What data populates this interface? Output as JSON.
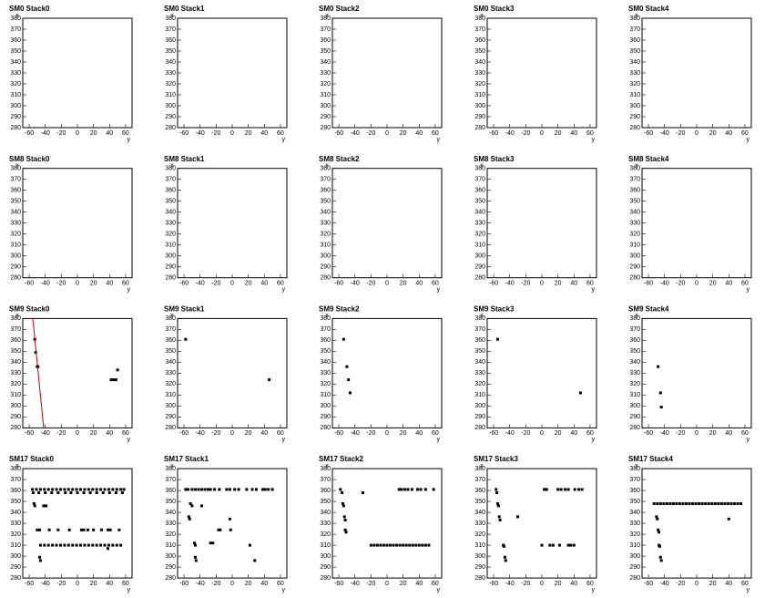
{
  "chart_data": [
    {
      "type": "scatter",
      "title": "SM0 Stack0",
      "xlabel": "y",
      "ylabel": "x",
      "xlim": [
        -68,
        68
      ],
      "ylim": [
        280,
        380
      ],
      "xticks": [
        -60,
        -40,
        -20,
        0,
        20,
        40,
        60
      ],
      "yticks": [
        280,
        290,
        300,
        310,
        320,
        330,
        340,
        350,
        360,
        370,
        380
      ],
      "series": []
    },
    {
      "type": "scatter",
      "title": "SM0 Stack1",
      "xlabel": "y",
      "ylabel": "x",
      "xlim": [
        -68,
        68
      ],
      "ylim": [
        280,
        380
      ],
      "xticks": [
        -60,
        -40,
        -20,
        0,
        20,
        40,
        60
      ],
      "yticks": [
        280,
        290,
        300,
        310,
        320,
        330,
        340,
        350,
        360,
        370,
        380
      ],
      "series": []
    },
    {
      "type": "scatter",
      "title": "SM0 Stack2",
      "xlabel": "y",
      "ylabel": "x",
      "xlim": [
        -68,
        68
      ],
      "ylim": [
        280,
        380
      ],
      "xticks": [
        -60,
        -40,
        -20,
        0,
        20,
        40,
        60
      ],
      "yticks": [
        280,
        290,
        300,
        310,
        320,
        330,
        340,
        350,
        360,
        370,
        380
      ],
      "series": []
    },
    {
      "type": "scatter",
      "title": "SM0 Stack3",
      "xlabel": "y",
      "ylabel": "x",
      "xlim": [
        -68,
        68
      ],
      "ylim": [
        280,
        380
      ],
      "xticks": [
        -60,
        -40,
        -20,
        0,
        20,
        40,
        60
      ],
      "yticks": [
        280,
        290,
        300,
        310,
        320,
        330,
        340,
        350,
        360,
        370,
        380
      ],
      "series": []
    },
    {
      "type": "scatter",
      "title": "SM0 Stack4",
      "xlabel": "y",
      "ylabel": "x",
      "xlim": [
        -68,
        68
      ],
      "ylim": [
        280,
        380
      ],
      "xticks": [
        -60,
        -40,
        -20,
        0,
        20,
        40,
        60
      ],
      "yticks": [
        280,
        290,
        300,
        310,
        320,
        330,
        340,
        350,
        360,
        370,
        380
      ],
      "series": []
    },
    {
      "type": "scatter",
      "title": "SM8 Stack0",
      "xlabel": "y",
      "ylabel": "x",
      "xlim": [
        -68,
        68
      ],
      "ylim": [
        280,
        380
      ],
      "xticks": [
        -60,
        -40,
        -20,
        0,
        20,
        40,
        60
      ],
      "yticks": [
        280,
        290,
        300,
        310,
        320,
        330,
        340,
        350,
        360,
        370,
        380
      ],
      "series": []
    },
    {
      "type": "scatter",
      "title": "SM8 Stack1",
      "xlabel": "y",
      "ylabel": "x",
      "xlim": [
        -68,
        68
      ],
      "ylim": [
        280,
        380
      ],
      "xticks": [
        -60,
        -40,
        -20,
        0,
        20,
        40,
        60
      ],
      "yticks": [
        280,
        290,
        300,
        310,
        320,
        330,
        340,
        350,
        360,
        370,
        380
      ],
      "series": []
    },
    {
      "type": "scatter",
      "title": "SM8 Stack2",
      "xlabel": "y",
      "ylabel": "x",
      "xlim": [
        -68,
        68
      ],
      "ylim": [
        280,
        380
      ],
      "xticks": [
        -60,
        -40,
        -20,
        0,
        20,
        40,
        60
      ],
      "yticks": [
        280,
        290,
        300,
        310,
        320,
        330,
        340,
        350,
        360,
        370,
        380
      ],
      "series": []
    },
    {
      "type": "scatter",
      "title": "SM8 Stack3",
      "xlabel": "y",
      "ylabel": "x",
      "xlim": [
        -68,
        68
      ],
      "ylim": [
        280,
        380
      ],
      "xticks": [
        -60,
        -40,
        -20,
        0,
        20,
        40,
        60
      ],
      "yticks": [
        280,
        290,
        300,
        310,
        320,
        330,
        340,
        350,
        360,
        370,
        380
      ],
      "series": []
    },
    {
      "type": "scatter",
      "title": "SM8 Stack4",
      "xlabel": "y",
      "ylabel": "x",
      "xlim": [
        -68,
        68
      ],
      "ylim": [
        280,
        380
      ],
      "xticks": [
        -60,
        -40,
        -20,
        0,
        20,
        40,
        60
      ],
      "yticks": [
        280,
        290,
        300,
        310,
        320,
        330,
        340,
        350,
        360,
        370,
        380
      ],
      "series": []
    },
    {
      "type": "scatter",
      "title": "SM9 Stack0",
      "xlabel": "y",
      "ylabel": "x",
      "xlim": [
        -68,
        68
      ],
      "ylim": [
        280,
        380
      ],
      "xticks": [
        -60,
        -40,
        -20,
        0,
        20,
        40,
        60
      ],
      "yticks": [
        280,
        290,
        300,
        310,
        320,
        330,
        340,
        350,
        360,
        370,
        380
      ],
      "series": [
        {
          "color": "#000000",
          "x": [
            -53,
            -52,
            -50,
            -49,
            42,
            45,
            48,
            50
          ],
          "values": [
            361,
            349,
            336,
            336,
            324,
            324,
            324,
            333
          ]
        },
        {
          "type": "line",
          "color": "#cc0000",
          "x": [
            -55.5,
            -42
          ],
          "values": [
            380,
            280
          ]
        }
      ]
    },
    {
      "type": "scatter",
      "title": "SM9 Stack1",
      "xlabel": "y",
      "ylabel": "x",
      "xlim": [
        -68,
        68
      ],
      "ylim": [
        280,
        380
      ],
      "xticks": [
        -60,
        -40,
        -20,
        0,
        20,
        40,
        60
      ],
      "yticks": [
        280,
        290,
        300,
        310,
        320,
        330,
        340,
        350,
        360,
        370,
        380
      ],
      "series": [
        {
          "color": "#000000",
          "x": [
            -58,
            46
          ],
          "values": [
            361,
            324
          ]
        }
      ]
    },
    {
      "type": "scatter",
      "title": "SM9 Stack2",
      "xlabel": "y",
      "ylabel": "x",
      "xlim": [
        -68,
        68
      ],
      "ylim": [
        280,
        380
      ],
      "xticks": [
        -60,
        -40,
        -20,
        0,
        20,
        40,
        60
      ],
      "yticks": [
        280,
        290,
        300,
        310,
        320,
        330,
        340,
        350,
        360,
        370,
        380
      ],
      "series": [
        {
          "color": "#000000",
          "x": [
            -54,
            -50,
            -48,
            -46
          ],
          "values": [
            361,
            336,
            324,
            312
          ]
        }
      ]
    },
    {
      "type": "scatter",
      "title": "SM9 Stack3",
      "xlabel": "y",
      "ylabel": "x",
      "xlim": [
        -68,
        68
      ],
      "ylim": [
        280,
        380
      ],
      "xticks": [
        -60,
        -40,
        -20,
        0,
        20,
        40,
        60
      ],
      "yticks": [
        280,
        290,
        300,
        310,
        320,
        330,
        340,
        350,
        360,
        370,
        380
      ],
      "series": [
        {
          "color": "#000000",
          "x": [
            -55,
            48
          ],
          "values": [
            361,
            312
          ]
        }
      ]
    },
    {
      "type": "scatter",
      "title": "SM9 Stack4",
      "xlabel": "y",
      "ylabel": "x",
      "xlim": [
        -68,
        68
      ],
      "ylim": [
        280,
        380
      ],
      "xticks": [
        -60,
        -40,
        -20,
        0,
        20,
        40,
        60
      ],
      "yticks": [
        280,
        290,
        300,
        310,
        320,
        330,
        340,
        350,
        360,
        370,
        380
      ],
      "series": [
        {
          "color": "#000000",
          "x": [
            -48,
            -45,
            -44
          ],
          "values": [
            336,
            312,
            299
          ]
        }
      ]
    },
    {
      "type": "scatter",
      "title": "SM17 Stack0",
      "xlabel": "y",
      "ylabel": "x",
      "xlim": [
        -68,
        68
      ],
      "ylim": [
        280,
        380
      ],
      "xticks": [
        -60,
        -40,
        -20,
        0,
        20,
        40,
        60
      ],
      "yticks": [
        280,
        290,
        300,
        310,
        320,
        330,
        340,
        350,
        360,
        370,
        380
      ],
      "series": [
        {
          "color": "#000000",
          "x": [
            -56,
            -51,
            -46,
            -41,
            -36,
            -31,
            -26,
            -21,
            -16,
            -11,
            -6,
            -1,
            4,
            9,
            14,
            19,
            24,
            29,
            34,
            39,
            44,
            49,
            54,
            58,
            -55,
            -48,
            -40,
            -32,
            -24,
            -15,
            -8,
            0,
            8,
            16,
            24,
            32,
            40,
            48,
            56,
            -46,
            -41,
            -36,
            -31,
            -26,
            -21,
            -16,
            -11,
            -6,
            -1,
            4,
            9,
            14,
            19,
            24,
            29,
            34,
            39,
            44,
            49,
            54,
            -50,
            -47,
            -35,
            -24,
            -10,
            5,
            8,
            13,
            20,
            30,
            38,
            41,
            52,
            -54,
            -53,
            -42,
            -39,
            -47,
            -46,
            38
          ],
          "values": [
            361,
            361,
            361,
            361,
            361,
            361,
            361,
            361,
            361,
            361,
            361,
            361,
            361,
            361,
            361,
            361,
            361,
            361,
            361,
            361,
            361,
            361,
            361,
            361,
            358,
            358,
            358,
            358,
            358,
            358,
            358,
            358,
            358,
            358,
            358,
            358,
            358,
            358,
            358,
            310,
            310,
            310,
            310,
            310,
            310,
            310,
            310,
            310,
            310,
            310,
            310,
            310,
            310,
            310,
            310,
            310,
            310,
            310,
            310,
            310,
            324,
            324,
            324,
            324,
            324,
            324,
            324,
            324,
            324,
            324,
            324,
            324,
            324,
            348,
            346,
            346,
            346,
            299,
            296,
            307
          ]
        }
      ]
    },
    {
      "type": "scatter",
      "title": "SM17 Stack1",
      "xlabel": "y",
      "ylabel": "x",
      "xlim": [
        -68,
        68
      ],
      "ylim": [
        280,
        380
      ],
      "xticks": [
        -60,
        -40,
        -20,
        0,
        20,
        40,
        60
      ],
      "yticks": [
        280,
        290,
        300,
        310,
        320,
        330,
        340,
        350,
        360,
        370,
        380
      ],
      "series": [
        {
          "color": "#000000",
          "x": [
            -58,
            -55,
            -50,
            -46,
            -42,
            -38,
            -34,
            -30,
            -27,
            -22,
            -16,
            -7,
            -3,
            3,
            8,
            18,
            25,
            30,
            38,
            41,
            45,
            50,
            -52,
            -50,
            -38,
            -54,
            -53,
            -47,
            -46,
            -46,
            -45,
            -27,
            -24,
            -17,
            -15,
            -2,
            -3,
            22,
            28
          ],
          "values": [
            361,
            361,
            361,
            361,
            361,
            361,
            361,
            361,
            361,
            361,
            361,
            361,
            361,
            361,
            361,
            361,
            361,
            361,
            361,
            361,
            361,
            361,
            348,
            346,
            346,
            336,
            334,
            312,
            310,
            299,
            296,
            312,
            312,
            324,
            324,
            324,
            334,
            310,
            296
          ]
        }
      ]
    },
    {
      "type": "scatter",
      "title": "SM17 Stack2",
      "xlabel": "y",
      "ylabel": "x",
      "xlim": [
        -68,
        68
      ],
      "ylim": [
        280,
        380
      ],
      "xticks": [
        -60,
        -40,
        -20,
        0,
        20,
        40,
        60
      ],
      "yticks": [
        280,
        290,
        300,
        310,
        320,
        330,
        340,
        350,
        360,
        370,
        380
      ],
      "series": [
        {
          "color": "#000000",
          "x": [
            -58,
            -56,
            -55,
            -54,
            -53,
            -52,
            -52,
            -51,
            -30,
            15,
            18,
            22,
            26,
            31,
            38,
            42,
            48,
            58,
            -20,
            -16,
            -12,
            -8,
            -4,
            0,
            4,
            8,
            12,
            16,
            20,
            24,
            28,
            32,
            36,
            40,
            44,
            48,
            52
          ],
          "values": [
            361,
            358,
            348,
            346,
            336,
            333,
            324,
            322,
            358,
            361,
            361,
            361,
            361,
            361,
            361,
            361,
            361,
            361,
            310,
            310,
            310,
            310,
            310,
            310,
            310,
            310,
            310,
            310,
            310,
            310,
            310,
            310,
            310,
            310,
            310,
            310,
            310
          ]
        }
      ]
    },
    {
      "type": "scatter",
      "title": "SM17 Stack3",
      "xlabel": "y",
      "ylabel": "x",
      "xlim": [
        -68,
        68
      ],
      "ylim": [
        280,
        380
      ],
      "xticks": [
        -60,
        -40,
        -20,
        0,
        20,
        40,
        60
      ],
      "yticks": [
        280,
        290,
        300,
        310,
        320,
        330,
        340,
        350,
        360,
        370,
        380
      ],
      "series": [
        {
          "color": "#000000",
          "x": [
            -57,
            -56,
            -55,
            -54,
            -53,
            -52,
            -48,
            -47,
            -46,
            -45,
            -30,
            0,
            10,
            14,
            22,
            33,
            36,
            40,
            3,
            6,
            20,
            24,
            29,
            33,
            41,
            46,
            50
          ],
          "values": [
            361,
            358,
            348,
            346,
            336,
            333,
            310,
            309,
            299,
            296,
            336,
            310,
            310,
            310,
            310,
            310,
            310,
            310,
            361,
            361,
            361,
            361,
            361,
            361,
            361,
            361,
            361
          ]
        }
      ]
    },
    {
      "type": "scatter",
      "title": "SM17 Stack4",
      "xlabel": "y",
      "ylabel": "x",
      "xlim": [
        -68,
        68
      ],
      "ylim": [
        280,
        380
      ],
      "xticks": [
        -60,
        -40,
        -20,
        0,
        20,
        40,
        60
      ],
      "yticks": [
        280,
        290,
        300,
        310,
        320,
        330,
        340,
        350,
        360,
        370,
        380
      ],
      "series": [
        {
          "color": "#000000",
          "x": [
            -53,
            -49,
            -45,
            -41,
            -37,
            -33,
            -29,
            -25,
            -21,
            -17,
            -13,
            -9,
            -5,
            -1,
            3,
            7,
            11,
            15,
            19,
            23,
            27,
            31,
            35,
            39,
            43,
            47,
            51,
            55,
            -50,
            -49,
            -48,
            -47,
            -47,
            -46,
            -45,
            -44,
            40
          ],
          "values": [
            348,
            348,
            348,
            348,
            348,
            348,
            348,
            348,
            348,
            348,
            348,
            348,
            348,
            348,
            348,
            348,
            348,
            348,
            348,
            348,
            348,
            348,
            348,
            348,
            348,
            348,
            348,
            348,
            336,
            334,
            324,
            322,
            310,
            309,
            299,
            296,
            334
          ]
        }
      ]
    }
  ]
}
